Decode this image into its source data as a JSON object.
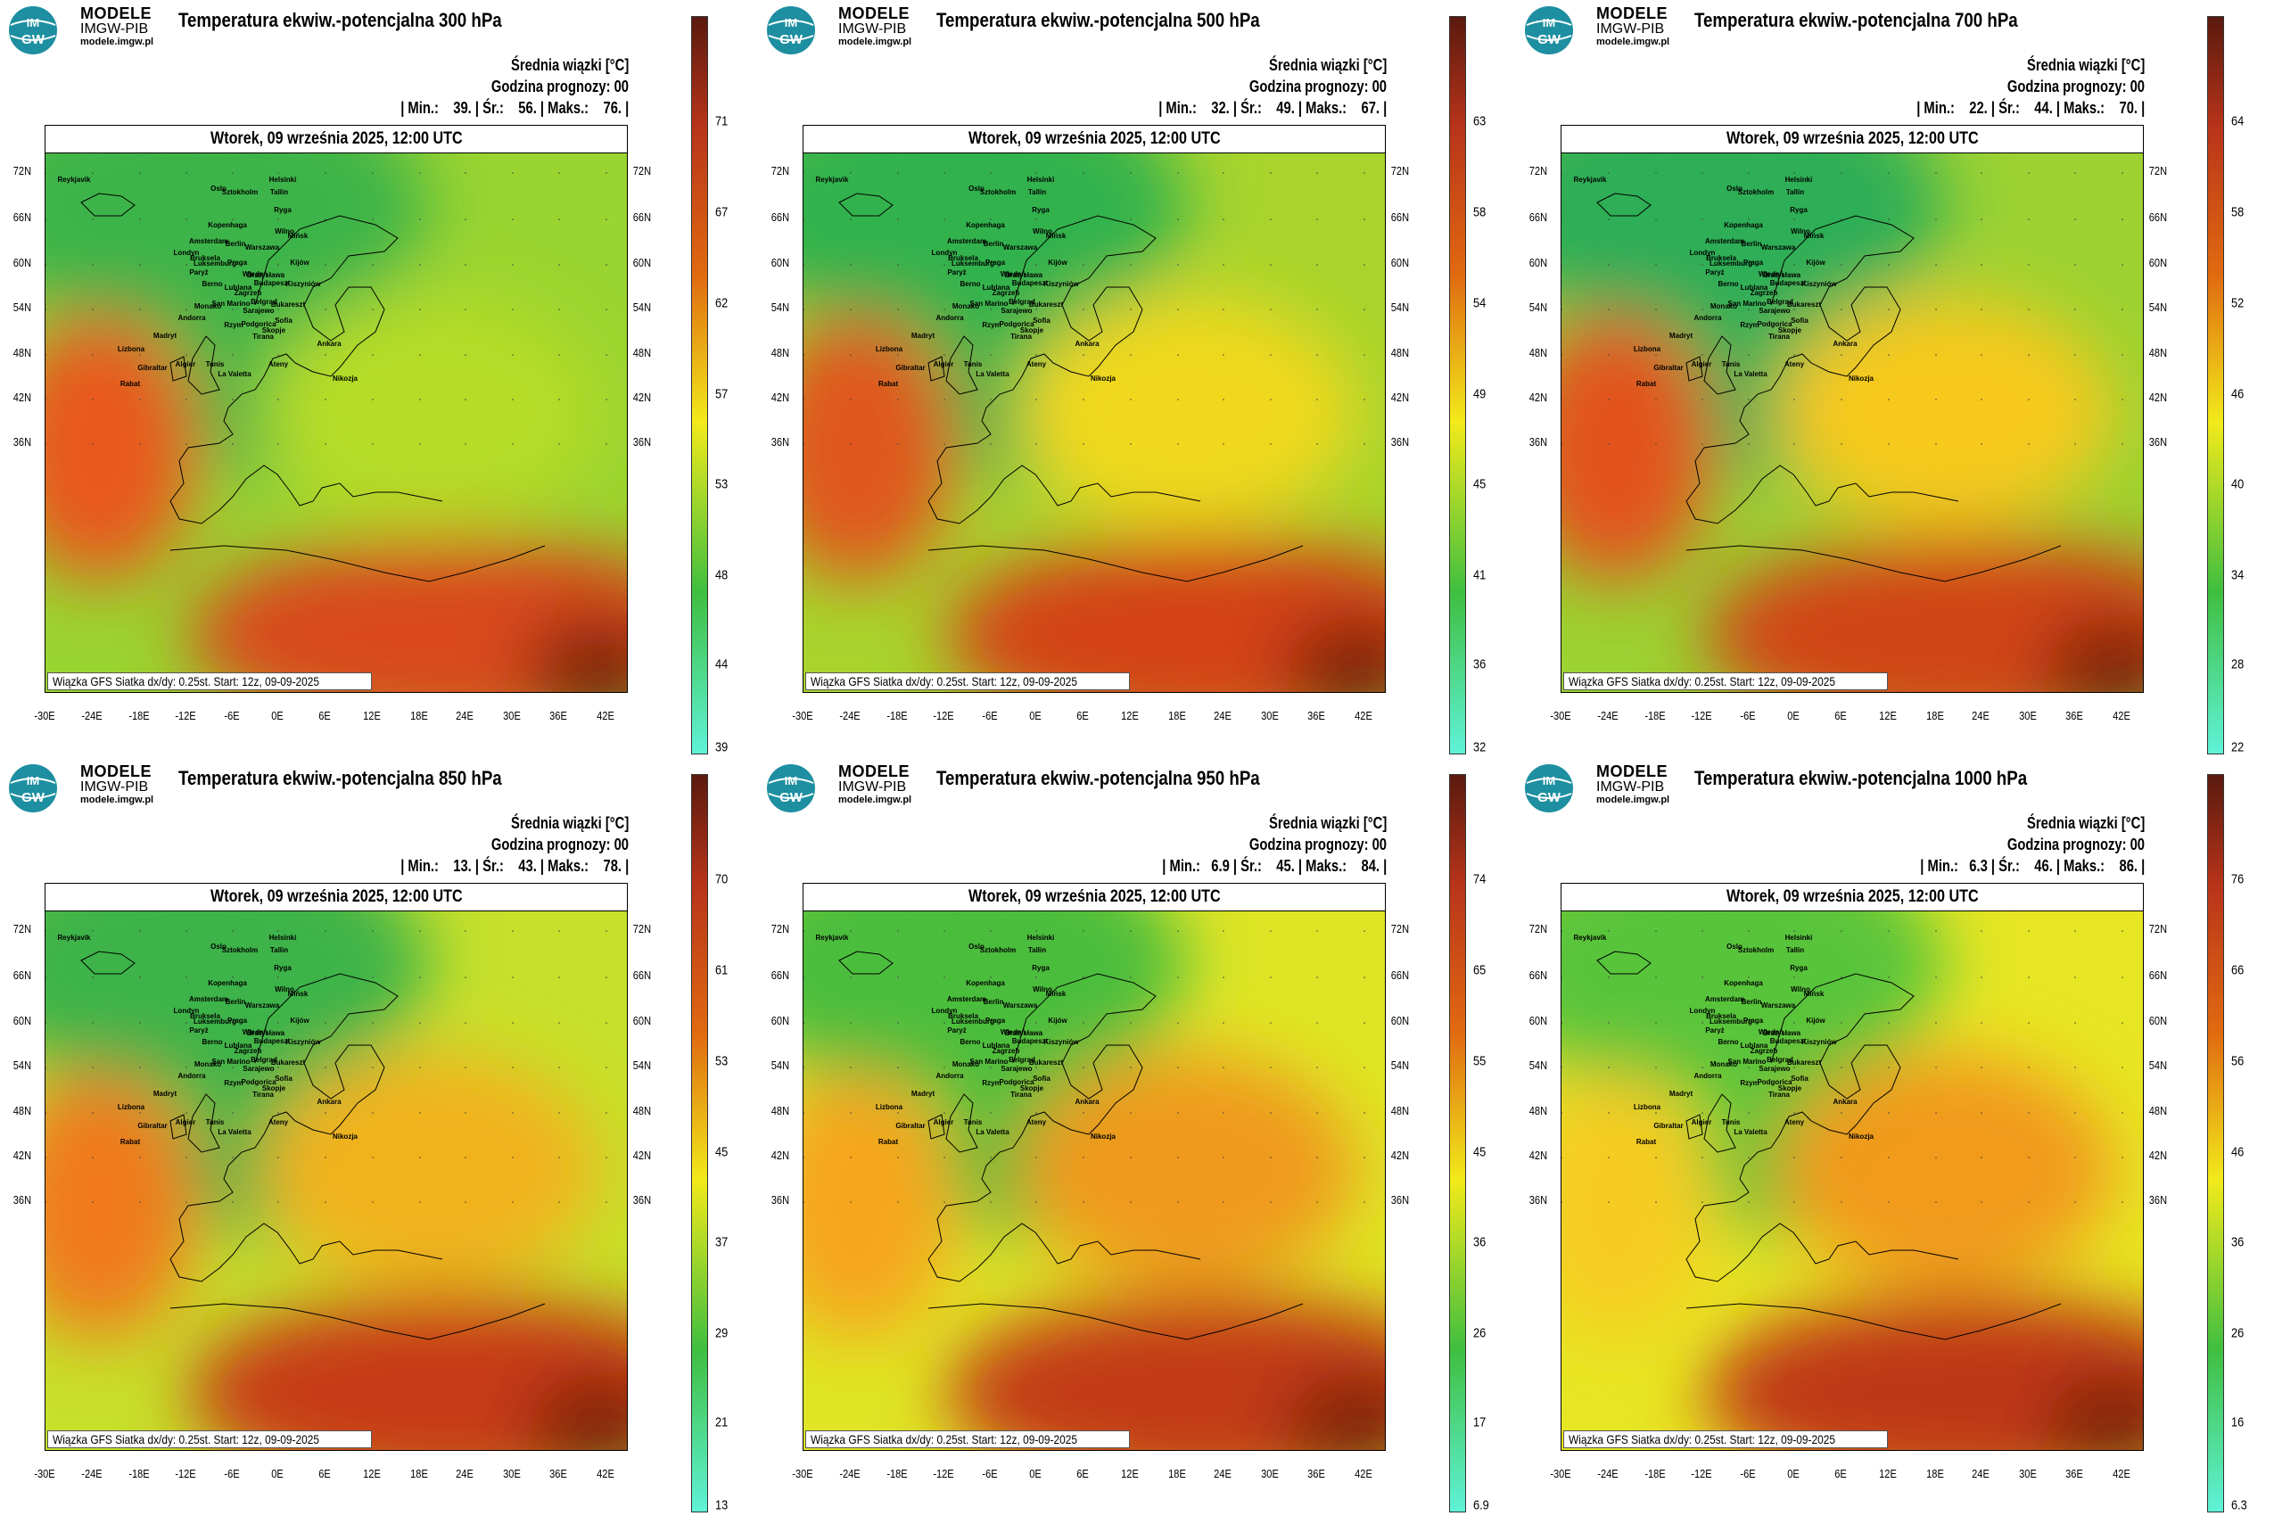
{
  "brand": {
    "line1": "MODELE",
    "line2": "IMGW-PIB",
    "line3": "modele.imgw.pl",
    "logo_top": "IM",
    "logo_bottom": "GW"
  },
  "common": {
    "legend_title": "Średnia wiązki [°C]",
    "forecast_hour": "Godzina prognozy: 00",
    "date": "Wtorek, 09 września 2025, 12:00 UTC",
    "footer": "Wiązka GFS Siatka dx/dy: 0.25st. Start: 12z, 09-09-2025",
    "lat_labels": [
      "72N",
      "66N",
      "60N",
      "54N",
      "48N",
      "42N",
      "36N"
    ],
    "lon_labels": [
      "-30E",
      "-24E",
      "-18E",
      "-12E",
      "-6E",
      "0E",
      "6E",
      "12E",
      "18E",
      "24E",
      "30E",
      "36E",
      "42E"
    ],
    "cities": [
      "Oslo",
      "Sztokholm",
      "Helsinki",
      "Tallin",
      "Ryga",
      "Wilno",
      "Mińsk",
      "Kopenhaga",
      "Amsterdam",
      "Berlin",
      "Warszawa",
      "Londyn",
      "Bruksela",
      "Luksemburg",
      "Paryż",
      "Praga",
      "Wiedeń",
      "Bratysława",
      "Budapeszt",
      "Kijów",
      "Kiszyniów",
      "Berno",
      "Lublana",
      "Zagrzeb",
      "Belgrad",
      "Sarajewo",
      "Bukareszt",
      "San Marino",
      "Monako",
      "Andorra",
      "Rzym",
      "Podgorica",
      "Skopje",
      "Sofia",
      "Tirana",
      "Madryt",
      "Lizbona",
      "Ateny",
      "Ankara",
      "Gibraltar",
      "Algier",
      "Tunis",
      "La Valetta",
      "Rabat",
      "Nikozja",
      "Reykjavik"
    ]
  },
  "panels": [
    {
      "title": "Temperatura ekwiw.-potencjalna 300 hPa",
      "stats": "| Min.:    39. | Śr.:    56. | Maks.:    76. |",
      "colorbar": [
        "71",
        "67",
        "62",
        "57",
        "53",
        "48",
        "44",
        "39"
      ]
    },
    {
      "title": "Temperatura ekwiw.-potencjalna 500 hPa",
      "stats": "| Min.:    32. | Śr.:    49. | Maks.:    67. |",
      "colorbar": [
        "63",
        "58",
        "54",
        "49",
        "45",
        "41",
        "36",
        "32"
      ]
    },
    {
      "title": "Temperatura ekwiw.-potencjalna 700 hPa",
      "stats": "| Min.:    22. | Śr.:    44. | Maks.:    70. |",
      "colorbar": [
        "64",
        "58",
        "52",
        "46",
        "40",
        "34",
        "28",
        "22"
      ]
    },
    {
      "title": "Temperatura ekwiw.-potencjalna 850 hPa",
      "stats": "| Min.:    13. | Śr.:    43. | Maks.:    78. |",
      "colorbar": [
        "70",
        "61",
        "53",
        "45",
        "37",
        "29",
        "21",
        "13"
      ]
    },
    {
      "title": "Temperatura ekwiw.-potencjalna 950 hPa",
      "stats": "| Min.:   6.9 | Śr.:    45. | Maks.:    84. |",
      "colorbar": [
        "74",
        "65",
        "55",
        "45",
        "36",
        "26",
        "17",
        "6.9"
      ]
    },
    {
      "title": "Temperatura ekwiw.-potencjalna 1000 hPa",
      "stats": "| Min.:   6.3 | Śr.:    46. | Maks.:    86. |",
      "colorbar": [
        "76",
        "66",
        "56",
        "46",
        "36",
        "26",
        "16",
        "6.3"
      ]
    }
  ],
  "colors": {
    "colorbar_top": "#5a1a0e",
    "colorbar_mid1": "#e06a10",
    "colorbar_mid2": "#f2ea1a",
    "colorbar_mid3": "#3fbf3f",
    "colorbar_bottom": "#5ff2d8",
    "logo": "#1d8fa0"
  }
}
